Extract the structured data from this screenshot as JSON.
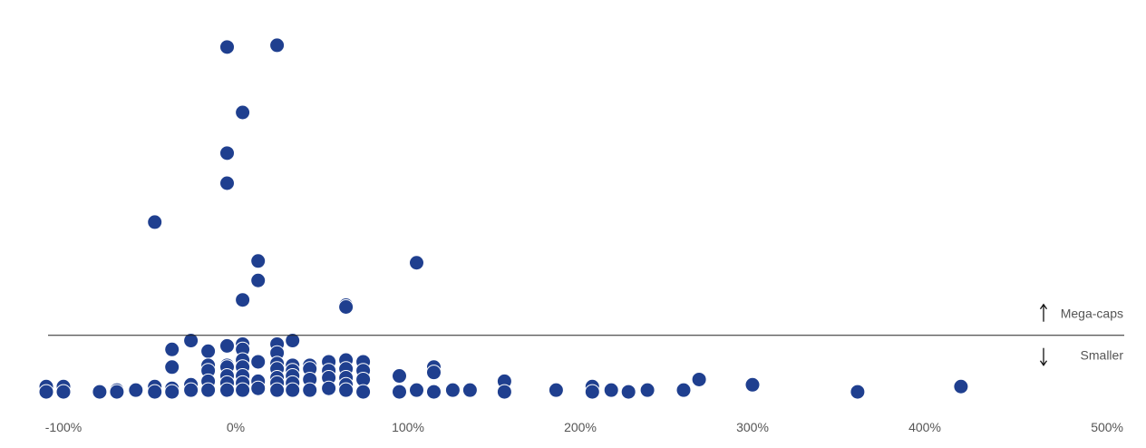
{
  "chart_data": {
    "type": "scatter",
    "title": "",
    "xlabel": "",
    "ylabel": "",
    "x_ticks": [
      "-100%",
      "0%",
      "100%",
      "200%",
      "300%",
      "400%",
      "500%"
    ],
    "x_tick_values": [
      -100,
      0,
      100,
      200,
      300,
      400,
      500
    ],
    "xlim": [
      -110,
      500
    ],
    "ylim": [
      0,
      100
    ],
    "grid": false,
    "legend": "none",
    "marker_color": "#1f3f8f",
    "divider_value": 17,
    "annotations": {
      "above": "Mega-caps",
      "below": "Smaller"
    },
    "points": [
      {
        "x": -5,
        "y": 98.5
      },
      {
        "x": 24,
        "y": 99
      },
      {
        "x": 4,
        "y": 80
      },
      {
        "x": -5,
        "y": 68.5
      },
      {
        "x": -5,
        "y": 60
      },
      {
        "x": -47,
        "y": 49
      },
      {
        "x": 105,
        "y": 37.5
      },
      {
        "x": 13,
        "y": 38
      },
      {
        "x": 13,
        "y": 32.5
      },
      {
        "x": 4,
        "y": 27
      },
      {
        "x": 64,
        "y": 25.5
      },
      {
        "x": 64,
        "y": 25
      },
      {
        "x": -37,
        "y": 13
      },
      {
        "x": -26,
        "y": 15.5
      },
      {
        "x": -16,
        "y": 12.5
      },
      {
        "x": -5,
        "y": 14
      },
      {
        "x": 4,
        "y": 14.5
      },
      {
        "x": 4,
        "y": 13
      },
      {
        "x": 24,
        "y": 14.5
      },
      {
        "x": 24,
        "y": 12
      },
      {
        "x": 33,
        "y": 15.5
      },
      {
        "x": -37,
        "y": 8
      },
      {
        "x": -16,
        "y": 8.5
      },
      {
        "x": -16,
        "y": 7
      },
      {
        "x": -5,
        "y": 8.5
      },
      {
        "x": -5,
        "y": 8
      },
      {
        "x": 4,
        "y": 10
      },
      {
        "x": 4,
        "y": 8
      },
      {
        "x": 13,
        "y": 9.5
      },
      {
        "x": 24,
        "y": 9
      },
      {
        "x": 24,
        "y": 7.5
      },
      {
        "x": 33,
        "y": 8.5
      },
      {
        "x": 33,
        "y": 7
      },
      {
        "x": 43,
        "y": 8.5
      },
      {
        "x": 43,
        "y": 7.5
      },
      {
        "x": 54,
        "y": 9.5
      },
      {
        "x": 54,
        "y": 7
      },
      {
        "x": 64,
        "y": 10
      },
      {
        "x": 64,
        "y": 7.5
      },
      {
        "x": 74,
        "y": 9.5
      },
      {
        "x": 74,
        "y": 7
      },
      {
        "x": 115,
        "y": 8
      },
      {
        "x": 115,
        "y": 6.5
      },
      {
        "x": -110,
        "y": 2.5
      },
      {
        "x": -110,
        "y": 1
      },
      {
        "x": -100,
        "y": 2.5
      },
      {
        "x": -100,
        "y": 1
      },
      {
        "x": -79,
        "y": 1
      },
      {
        "x": -69,
        "y": 1.5
      },
      {
        "x": -69,
        "y": 1
      },
      {
        "x": -58,
        "y": 1.5
      },
      {
        "x": -47,
        "y": 2.5
      },
      {
        "x": -47,
        "y": 1
      },
      {
        "x": -37,
        "y": 2
      },
      {
        "x": -37,
        "y": 1
      },
      {
        "x": -26,
        "y": 3
      },
      {
        "x": -26,
        "y": 1.5
      },
      {
        "x": -16,
        "y": 4
      },
      {
        "x": -16,
        "y": 1.5
      },
      {
        "x": -5,
        "y": 5.5
      },
      {
        "x": -5,
        "y": 3.5
      },
      {
        "x": -5,
        "y": 1.5
      },
      {
        "x": 4,
        "y": 5.5
      },
      {
        "x": 4,
        "y": 3.5
      },
      {
        "x": 4,
        "y": 1.5
      },
      {
        "x": 13,
        "y": 4
      },
      {
        "x": 13,
        "y": 2
      },
      {
        "x": 24,
        "y": 5
      },
      {
        "x": 24,
        "y": 3.5
      },
      {
        "x": 24,
        "y": 1.5
      },
      {
        "x": 33,
        "y": 5.5
      },
      {
        "x": 33,
        "y": 3.5
      },
      {
        "x": 33,
        "y": 1.5
      },
      {
        "x": 43,
        "y": 4.5
      },
      {
        "x": 43,
        "y": 1.5
      },
      {
        "x": 54,
        "y": 5
      },
      {
        "x": 54,
        "y": 2
      },
      {
        "x": 64,
        "y": 5
      },
      {
        "x": 64,
        "y": 3
      },
      {
        "x": 64,
        "y": 1.5
      },
      {
        "x": 74,
        "y": 4.5
      },
      {
        "x": 74,
        "y": 1
      },
      {
        "x": 95,
        "y": 5.5
      },
      {
        "x": 95,
        "y": 1
      },
      {
        "x": 105,
        "y": 1.5
      },
      {
        "x": 115,
        "y": 1
      },
      {
        "x": 126,
        "y": 1.5
      },
      {
        "x": 136,
        "y": 1.5
      },
      {
        "x": 156,
        "y": 4
      },
      {
        "x": 156,
        "y": 1
      },
      {
        "x": 186,
        "y": 1.5
      },
      {
        "x": 207,
        "y": 2.5
      },
      {
        "x": 207,
        "y": 1
      },
      {
        "x": 218,
        "y": 1.5
      },
      {
        "x": 228,
        "y": 1
      },
      {
        "x": 239,
        "y": 1.5
      },
      {
        "x": 260,
        "y": 1.5
      },
      {
        "x": 269,
        "y": 4.5
      },
      {
        "x": 300,
        "y": 3
      },
      {
        "x": 361,
        "y": 1
      },
      {
        "x": 421,
        "y": 2.5
      }
    ]
  }
}
